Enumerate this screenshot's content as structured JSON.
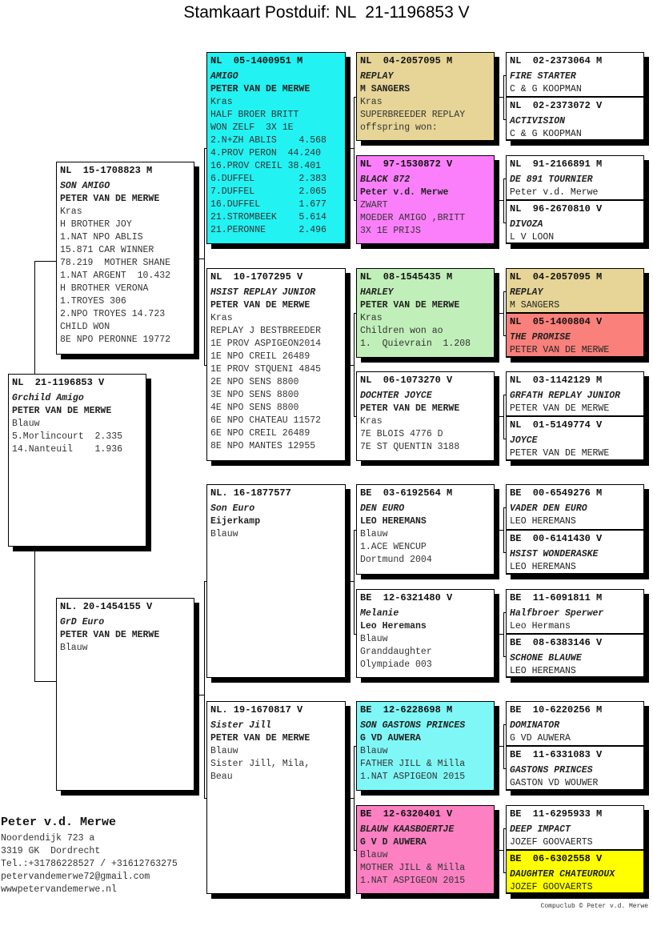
{
  "title": "Stamkaart Postduif: NL  21-1196853 V",
  "pigeons": {
    "subject": {
      "ring": "NL  21-1196853 V",
      "name": "Grchild Amigo",
      "owner": "PETER VAN DE MERWE",
      "details": [
        "Blauw",
        "5.Morlincourt  2.335",
        "14.Nanteuil    1.936"
      ],
      "color": "#ffffff"
    },
    "s": {
      "ring": "NL  15-1708823 M",
      "name": "SON AMIGO",
      "owner": "PETER VAN DE MERWE",
      "details": [
        "Kras",
        "H BROTHER JOY",
        "1.NAT NPO ABLIS",
        "15.871 CAR WINNER",
        "78.219  MOTHER SHANE",
        "1.NAT ARGENT  10.432",
        "H BROTHER VERONA",
        "1.TROYES 306",
        "2.NPO TROYES 14.723",
        "CHILD WON",
        "8E NPO PERONNE 19772"
      ],
      "color": "#ffffff"
    },
    "d": {
      "ring": "NL. 20-1454155 V",
      "name": "GrD Euro",
      "owner": "PETER VAN DE MERWE",
      "details": [
        "Blauw"
      ],
      "color": "#ffffff"
    },
    "ss": {
      "ring": "NL  05-1400951 M",
      "name": "AMIGO",
      "owner": "PETER VAN DE MERWE",
      "details": [
        "Kras",
        "HALF BROER BRITT",
        "WON ZELF  3X 1E",
        "2.N+ZH ABLIS    4.568",
        "4.PROV PERON  44.240",
        "16.PROV CREIL 38.401",
        "6.DUFFEL        2.383",
        "7.DUFFEL        2.065",
        "16.DUFFEL       1.677",
        "21.STROMBEEK    5.614",
        "21.PERONNE      2.496"
      ],
      "color": "#22f2f2"
    },
    "sd": {
      "ring": "NL  10-1707295 V",
      "name": "HSIST REPLAY JUNIOR",
      "owner": "PETER VAN DE MERWE",
      "details": [
        "Kras",
        "REPLAY J BESTBREEDER",
        "1E PROV ASPIGEON2014",
        "1E NPO CREIL 26489",
        "1E PROV STQUENI 4845",
        "2E NPO SENS 8800",
        "3E NPO SENS 8800",
        "4E NPO SENS 8800",
        "6E NPO CHATEAU 11572",
        "6E NPO CREIL 26489",
        "8E NPO MANTES 12955"
      ],
      "color": "#ffffff"
    },
    "ds": {
      "ring": "NL. 16-1877577",
      "name": "Son Euro",
      "owner": "Eijerkamp",
      "details": [
        "Blauw"
      ],
      "color": "#ffffff"
    },
    "dd": {
      "ring": "NL. 19-1670817 V",
      "name": "Sister Jill",
      "owner": "PETER VAN DE MERWE",
      "details": [
        "Blauw",
        "Sister Jill, Mila,",
        "Beau"
      ],
      "color": "#ffffff"
    },
    "sss": {
      "ring": "NL  04-2057095 M",
      "name": "REPLAY",
      "owner": "M SANGERS",
      "details": [
        "Kras",
        "SUPERBREEDER REPLAY",
        "offspring won:"
      ],
      "color": "#e6d597"
    },
    "ssd": {
      "ring": "NL  97-1530872 V",
      "name": "BLACK 872",
      "owner": "Peter v.d. Merwe",
      "details": [
        "ZWART",
        "MOEDER AMIGO ,BRITT",
        "3X 1E PRIJS"
      ],
      "color": "#fb7ffb"
    },
    "sds": {
      "ring": "NL  08-1545435 M",
      "name": "HARLEY",
      "owner": "PETER VAN DE MERWE",
      "details": [
        "Kras",
        "Children won ao",
        "1.  Quievrain  1.208"
      ],
      "color": "#c1efb9"
    },
    "sdd": {
      "ring": "NL  06-1073270 V",
      "name": "DOCHTER JOYCE",
      "owner": "PETER VAN DE MERWE",
      "details": [
        "Kras",
        "7E BLOIS 4776 D",
        "7E ST QUENTIN 3188"
      ],
      "color": "#ffffff"
    },
    "dss": {
      "ring": "BE  03-6192564 M",
      "name": "DEN EURO",
      "owner": "LEO HEREMANS",
      "details": [
        "Blauw",
        "1.ACE WENCUP",
        "Dortmund 2004"
      ],
      "color": "#ffffff"
    },
    "dsd": {
      "ring": "BE  12-6321480 V",
      "name": "Melanie",
      "owner": "Leo Heremans",
      "details": [
        "Blauw",
        "Granddaughter",
        "Olympiade 003"
      ],
      "color": "#ffffff"
    },
    "dds": {
      "ring": "BE  12-6228698 M",
      "name": "SON GASTONS PRINCES",
      "owner": "G VD AUWERA",
      "details": [
        "Blauw",
        "FATHER JILL & Milla",
        "1.NAT ASPIGEON 2015"
      ],
      "color": "#80f7f7"
    },
    "ddd": {
      "ring": "BE  12-6320401 V",
      "name": "BLAUW KAASBOERTJE",
      "owner": "G V D AUWERA",
      "details": [
        "Blauw",
        "MOTHER JILL & Milla",
        "1.NAT ASPIGEON 2015"
      ],
      "color": "#fc80c2"
    },
    "ssss": {
      "ring": "NL  02-2373064 M",
      "name": "FIRE STARTER",
      "owner": "C & G KOOPMAN",
      "details": [],
      "color": "#ffffff"
    },
    "sssd": {
      "ring": "NL  02-2373072 V",
      "name": "ACTIVISION",
      "owner": "C & G KOOPMAN",
      "details": [],
      "color": "#ffffff"
    },
    "ssds": {
      "ring": "NL  91-2166891 M",
      "name": "DE 891 TOURNIER",
      "owner": "Peter v.d. Merwe",
      "details": [],
      "color": "#ffffff"
    },
    "ssdd": {
      "ring": "NL  96-2670810 V",
      "name": "DIVOZA",
      "owner": "L V LOON",
      "details": [],
      "color": "#ffffff"
    },
    "sdss": {
      "ring": "NL  04-2057095 M",
      "name": "REPLAY",
      "owner": "M SANGERS",
      "details": [],
      "color": "#e6d597"
    },
    "sdsd": {
      "ring": "NL  05-1400804 V",
      "name": "THE PROMISE",
      "owner": "PETER VAN DE MERWE",
      "details": [],
      "color": "#f9807b"
    },
    "sdds": {
      "ring": "NL  03-1142129 M",
      "name": "GRFATH REPLAY JUNIOR",
      "owner": "PETER VAN DE MERWE",
      "details": [],
      "color": "#ffffff"
    },
    "sddd": {
      "ring": "NL  01-5149774 V",
      "name": "JOYCE",
      "owner": "PETER VAN DE MERWE",
      "details": [],
      "color": "#ffffff"
    },
    "dsss": {
      "ring": "BE  00-6549276 M",
      "name": "VADER DEN EURO",
      "owner": "LEO HEREMANS",
      "details": [],
      "color": "#ffffff"
    },
    "dssd": {
      "ring": "BE  00-6141430 V",
      "name": "HSIST WONDERASKE",
      "owner": "LEO HEREMANS",
      "details": [],
      "color": "#ffffff"
    },
    "dsds": {
      "ring": "BE  11-6091811 M",
      "name": "Halfbroer Sperwer",
      "owner": "Leo Hermans",
      "details": [],
      "color": "#ffffff"
    },
    "dsdd": {
      "ring": "BE  08-6383146 V",
      "name": "SCHONE BLAUWE",
      "owner": "LEO HEREMANS",
      "details": [],
      "color": "#ffffff"
    },
    "ddss": {
      "ring": "BE  10-6220256 M",
      "name": "DOMINATOR",
      "owner": "G VD AUWERA",
      "details": [],
      "color": "#ffffff"
    },
    "ddsd": {
      "ring": "BE  11-6331083 V",
      "name": "GASTONS PRINCES",
      "owner": "GASTON VD WOUWER",
      "details": [],
      "color": "#ffffff"
    },
    "ddds": {
      "ring": "BE  11-6295933 M",
      "name": "DEEP IMPACT",
      "owner": "JOZEF GOOVAERTS",
      "details": [],
      "color": "#ffffff"
    },
    "dddd": {
      "ring": "BE  06-6302558 V",
      "name": "DAUGHTER CHATEUROUX",
      "owner": "JOZEF GOOVAERTS",
      "details": [],
      "color": "#ffff00"
    }
  },
  "owner": {
    "name": "Peter v.d. Merwe",
    "address": "Noordendijk 723 a",
    "city": "3319 GK  Dordrecht",
    "phone": "Tel.:+31786228527 / +31612763275",
    "email": "petervandemerwe72@gmail.com",
    "website": "wwwpetervandemerwe.nl"
  },
  "credit": "Compuclub © Peter v.d. Merwe"
}
